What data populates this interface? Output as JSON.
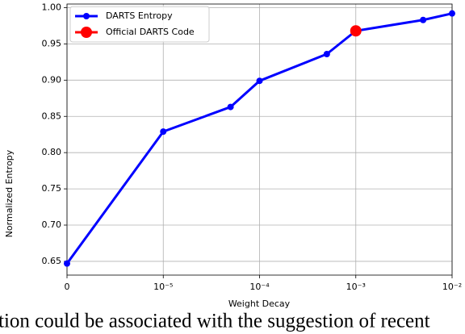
{
  "chart_data": {
    "type": "line",
    "xlabel": "Weight Decay",
    "ylabel": "Normalized Entropy",
    "xscale": "symlog",
    "linthresh": 1e-05,
    "xlim": [
      0,
      0.01
    ],
    "ylim": [
      0.631,
      1.005
    ],
    "xticks": [
      0,
      {
        "value": 1e-05,
        "label": "10⁻⁵"
      },
      {
        "value": 0.0001,
        "label": "10⁻⁴"
      },
      {
        "value": 0.001,
        "label": "10⁻³"
      },
      {
        "value": 0.01,
        "label": "10⁻²"
      }
    ],
    "yticks": [
      {
        "value": 0.65,
        "label": "0.65"
      },
      {
        "value": 0.7,
        "label": "0.70"
      },
      {
        "value": 0.75,
        "label": "0.75"
      },
      {
        "value": 0.8,
        "label": "0.80"
      },
      {
        "value": 0.85,
        "label": "0.85"
      },
      {
        "value": 0.9,
        "label": "0.90"
      },
      {
        "value": 0.95,
        "label": "0.95"
      },
      {
        "value": 1.0,
        "label": "1.00"
      }
    ],
    "grid": true,
    "legend": "upper left",
    "series": [
      {
        "name": "DARTS Entropy",
        "color": "#0000ff",
        "x": [
          0,
          1e-05,
          5e-05,
          0.0001,
          0.0005,
          0.001,
          0.005,
          0.01
        ],
        "values": [
          0.647,
          0.829,
          0.863,
          0.899,
          0.936,
          0.968,
          0.983,
          0.992
        ]
      },
      {
        "name": "Official DARTS Code",
        "color": "#ff0000",
        "x": [
          0.001
        ],
        "values": [
          0.968
        ]
      }
    ]
  },
  "footer_text": "tion could be associated with the suggestion of recent"
}
